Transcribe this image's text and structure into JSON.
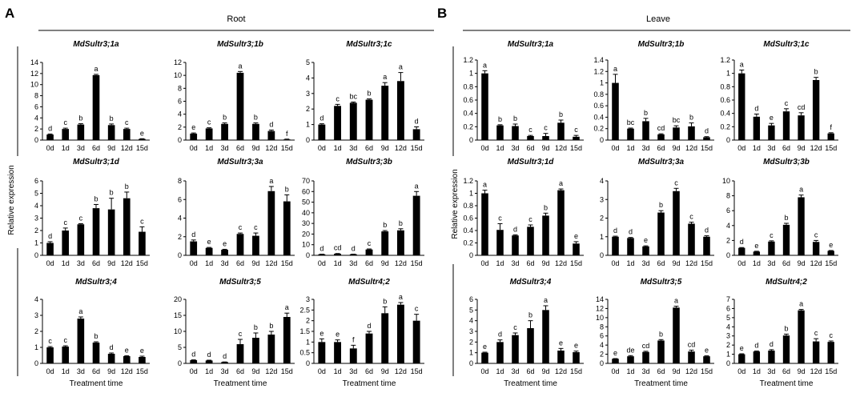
{
  "panels": [
    {
      "letter": "A",
      "tissue": "Root",
      "ylabel": "Relative expression"
    },
    {
      "letter": "B",
      "tissue": "Leave",
      "ylabel": "Relative expression"
    }
  ],
  "xlabel": "Treatment time",
  "chart_data": [
    {
      "type": "bar",
      "panel": "A",
      "tissue": "Root",
      "title": "MdSultr3;1a",
      "categories": [
        "0d",
        "1d",
        "3d",
        "6d",
        "9d",
        "12d",
        "15d"
      ],
      "values": [
        1.0,
        2.0,
        2.8,
        11.7,
        2.7,
        2.0,
        0.2
      ],
      "errors": [
        0.1,
        0.15,
        0.15,
        0.15,
        0.2,
        0.15,
        0.05
      ],
      "letters": [
        "d",
        "c",
        "b",
        "a",
        "b",
        "c",
        "e"
      ],
      "ylim": [
        0,
        14
      ],
      "yticks": [
        0,
        2,
        4,
        6,
        8,
        10,
        12,
        14
      ],
      "xlabel": "",
      "ylabel": ""
    },
    {
      "type": "bar",
      "panel": "A",
      "tissue": "Root",
      "title": "MdSultr3;1b",
      "categories": [
        "0d",
        "1d",
        "3d",
        "6d",
        "9d",
        "12d",
        "15d"
      ],
      "values": [
        1.0,
        1.8,
        2.5,
        10.4,
        2.5,
        1.4,
        0.1
      ],
      "errors": [
        0.1,
        0.1,
        0.15,
        0.2,
        0.15,
        0.15,
        0.05
      ],
      "letters": [
        "e",
        "c",
        "b",
        "a",
        "b",
        "d",
        "f"
      ],
      "ylim": [
        0,
        12
      ],
      "yticks": [
        0,
        2,
        4,
        6,
        8,
        10,
        12
      ],
      "xlabel": "",
      "ylabel": ""
    },
    {
      "type": "bar",
      "panel": "A",
      "tissue": "Root",
      "title": "MdSultr3;1c",
      "categories": [
        "0d",
        "1d",
        "3d",
        "6d",
        "9d",
        "12d",
        "15d"
      ],
      "values": [
        1.0,
        2.2,
        2.4,
        2.6,
        3.5,
        3.8,
        0.7
      ],
      "errors": [
        0.05,
        0.1,
        0.05,
        0.05,
        0.2,
        0.55,
        0.15
      ],
      "letters": [
        "d",
        "c",
        "bc",
        "b",
        "a",
        "a",
        "d"
      ],
      "ylim": [
        0,
        5
      ],
      "yticks": [
        0,
        1,
        2,
        3,
        4,
        5
      ],
      "xlabel": "",
      "ylabel": ""
    },
    {
      "type": "bar",
      "panel": "A",
      "tissue": "Root",
      "title": "MdSultr3;1d",
      "categories": [
        "0d",
        "1d",
        "3d",
        "6d",
        "9d",
        "12d",
        "15d"
      ],
      "values": [
        1.0,
        2.0,
        2.5,
        3.8,
        3.7,
        4.6,
        1.9
      ],
      "errors": [
        0.1,
        0.2,
        0.05,
        0.3,
        0.9,
        0.5,
        0.4
      ],
      "letters": [
        "d",
        "c",
        "c",
        "b",
        "b",
        "b",
        "c"
      ],
      "ylim": [
        0,
        6
      ],
      "yticks": [
        0,
        1,
        2,
        3,
        4,
        5,
        6
      ],
      "xlabel": "",
      "ylabel": ""
    },
    {
      "type": "bar",
      "panel": "A",
      "tissue": "Root",
      "title": "MdSultr3;3a",
      "categories": [
        "0d",
        "1d",
        "3d",
        "6d",
        "9d",
        "12d",
        "15d"
      ],
      "values": [
        1.5,
        0.8,
        0.6,
        2.3,
        2.1,
        6.9,
        5.8
      ],
      "errors": [
        0.15,
        0.05,
        0.05,
        0.1,
        0.3,
        0.5,
        0.7
      ],
      "letters": [
        "d",
        "e",
        "e",
        "c",
        "c",
        "a",
        "b"
      ],
      "ylim": [
        0,
        8
      ],
      "yticks": [
        0,
        2,
        4,
        6,
        8
      ],
      "xlabel": "",
      "ylabel": ""
    },
    {
      "type": "bar",
      "panel": "A",
      "tissue": "Root",
      "title": "MdSultr3;3b",
      "categories": [
        "0d",
        "1d",
        "3d",
        "6d",
        "9d",
        "12d",
        "15d"
      ],
      "values": [
        1.0,
        1.5,
        1.0,
        5.5,
        22.5,
        23.5,
        56.0
      ],
      "errors": [
        0.1,
        0.2,
        0.1,
        0.5,
        0.8,
        1.5,
        4.0
      ],
      "letters": [
        "d",
        "cd",
        "d",
        "c",
        "b",
        "b",
        "a"
      ],
      "ylim": [
        0,
        70
      ],
      "yticks": [
        0,
        10,
        20,
        30,
        40,
        50,
        60,
        70
      ],
      "xlabel": "",
      "ylabel": ""
    },
    {
      "type": "bar",
      "panel": "A",
      "tissue": "Root",
      "title": "MdSultr3;4",
      "categories": [
        "0d",
        "1d",
        "3d",
        "6d",
        "9d",
        "12d",
        "15d"
      ],
      "values": [
        1.0,
        1.05,
        2.8,
        1.3,
        0.6,
        0.45,
        0.4
      ],
      "errors": [
        0.05,
        0.05,
        0.1,
        0.05,
        0.05,
        0.03,
        0.05
      ],
      "letters": [
        "c",
        "c",
        "a",
        "b",
        "d",
        "e",
        "e"
      ],
      "ylim": [
        0,
        4
      ],
      "yticks": [
        0,
        1,
        2,
        3,
        4
      ],
      "xlabel": "Treatment time",
      "ylabel": ""
    },
    {
      "type": "bar",
      "panel": "A",
      "tissue": "Root",
      "title": "MdSultr3;5",
      "categories": [
        "0d",
        "1d",
        "3d",
        "6d",
        "9d",
        "12d",
        "15d"
      ],
      "values": [
        1.0,
        0.9,
        0.4,
        6.0,
        8.0,
        9.0,
        14.5
      ],
      "errors": [
        0.1,
        0.1,
        0.05,
        1.5,
        1.5,
        1.0,
        1.2
      ],
      "letters": [
        "d",
        "d",
        "d",
        "c",
        "b",
        "b",
        "a"
      ],
      "ylim": [
        0,
        20
      ],
      "yticks": [
        0,
        5,
        10,
        15,
        20
      ],
      "xlabel": "Treatment time",
      "ylabel": ""
    },
    {
      "type": "bar",
      "panel": "A",
      "tissue": "Root",
      "title": "MdSultr4;2",
      "categories": [
        "0d",
        "1d",
        "3d",
        "6d",
        "9d",
        "12d",
        "15d"
      ],
      "values": [
        1.0,
        1.0,
        0.7,
        1.4,
        2.35,
        2.75,
        2.0
      ],
      "errors": [
        0.15,
        0.1,
        0.15,
        0.1,
        0.3,
        0.1,
        0.3
      ],
      "letters": [
        "e",
        "e",
        "f",
        "d",
        "b",
        "a",
        "c"
      ],
      "ylim": [
        0,
        3
      ],
      "yticks": [
        0,
        0.5,
        1,
        1.5,
        2,
        2.5,
        3
      ],
      "xlabel": "Treatment time",
      "ylabel": ""
    },
    {
      "type": "bar",
      "panel": "B",
      "tissue": "Leave",
      "title": "MdSultr3;1a",
      "categories": [
        "0d",
        "1d",
        "3d",
        "6d",
        "9d",
        "12d",
        "15d"
      ],
      "values": [
        1.0,
        0.22,
        0.21,
        0.06,
        0.06,
        0.26,
        0.05
      ],
      "errors": [
        0.04,
        0.01,
        0.03,
        0.01,
        0.04,
        0.04,
        0.02
      ],
      "letters": [
        "a",
        "b",
        "b",
        "c",
        "c",
        "b",
        "c"
      ],
      "ylim": [
        0,
        1.2
      ],
      "yticks": [
        0,
        0.2,
        0.4,
        0.6,
        0.8,
        1,
        1.2
      ],
      "xlabel": "",
      "ylabel": ""
    },
    {
      "type": "bar",
      "panel": "B",
      "tissue": "Leave",
      "title": "MdSultr3;1b",
      "categories": [
        "0d",
        "1d",
        "3d",
        "6d",
        "9d",
        "12d",
        "15d"
      ],
      "values": [
        1.0,
        0.2,
        0.33,
        0.1,
        0.22,
        0.24,
        0.05
      ],
      "errors": [
        0.15,
        0.01,
        0.05,
        0.01,
        0.03,
        0.06,
        0.01
      ],
      "letters": [
        "a",
        "bc",
        "b",
        "cd",
        "bc",
        "b",
        "d"
      ],
      "ylim": [
        0,
        1.4
      ],
      "yticks": [
        0,
        0.2,
        0.4,
        0.6,
        0.8,
        1,
        1.2,
        1.4
      ],
      "xlabel": "",
      "ylabel": ""
    },
    {
      "type": "bar",
      "panel": "B",
      "tissue": "Leave",
      "title": "MdSultr3;1c",
      "categories": [
        "0d",
        "1d",
        "3d",
        "6d",
        "9d",
        "12d",
        "15d"
      ],
      "values": [
        1.0,
        0.35,
        0.22,
        0.43,
        0.37,
        0.9,
        0.1
      ],
      "errors": [
        0.05,
        0.04,
        0.03,
        0.04,
        0.04,
        0.04,
        0.01
      ],
      "letters": [
        "a",
        "d",
        "e",
        "c",
        "cd",
        "b",
        "f"
      ],
      "ylim": [
        0,
        1.2
      ],
      "yticks": [
        0,
        0.2,
        0.4,
        0.6,
        0.8,
        1,
        1.2
      ],
      "xlabel": "",
      "ylabel": ""
    },
    {
      "type": "bar",
      "panel": "B",
      "tissue": "Leave",
      "title": "MdSultr3;1d",
      "categories": [
        "0d",
        "1d",
        "3d",
        "6d",
        "9d",
        "12d",
        "15d"
      ],
      "values": [
        1.0,
        0.41,
        0.32,
        0.46,
        0.64,
        1.05,
        0.19
      ],
      "errors": [
        0.05,
        0.1,
        0.01,
        0.03,
        0.04,
        0.02,
        0.03
      ],
      "letters": [
        "a",
        "c",
        "d",
        "c",
        "b",
        "a",
        "e"
      ],
      "ylim": [
        0,
        1.2
      ],
      "yticks": [
        0,
        0.2,
        0.4,
        0.6,
        0.8,
        1,
        1.2
      ],
      "xlabel": "",
      "ylabel": ""
    },
    {
      "type": "bar",
      "panel": "B",
      "tissue": "Leave",
      "title": "MdSultr3;3a",
      "categories": [
        "0d",
        "1d",
        "3d",
        "6d",
        "9d",
        "12d",
        "15d"
      ],
      "values": [
        1.0,
        0.93,
        0.48,
        2.3,
        3.45,
        1.7,
        1.0
      ],
      "errors": [
        0.03,
        0.03,
        0.03,
        0.1,
        0.15,
        0.08,
        0.05
      ],
      "letters": [
        "d",
        "d",
        "e",
        "b",
        "c",
        "c",
        "d"
      ],
      "ylim": [
        0,
        4
      ],
      "yticks": [
        0,
        1,
        2,
        3,
        4
      ],
      "xlabel": "",
      "ylabel": ""
    },
    {
      "type": "bar",
      "panel": "B",
      "tissue": "Leave",
      "title": "MdSultr3;3b",
      "categories": [
        "0d",
        "1d",
        "3d",
        "6d",
        "9d",
        "12d",
        "15d"
      ],
      "values": [
        1.0,
        0.5,
        1.85,
        4.1,
        7.8,
        1.8,
        0.6
      ],
      "errors": [
        0.05,
        0.05,
        0.1,
        0.2,
        0.3,
        0.2,
        0.05
      ],
      "letters": [
        "d",
        "e",
        "c",
        "b",
        "a",
        "c",
        "e"
      ],
      "ylim": [
        0,
        10
      ],
      "yticks": [
        0,
        2,
        4,
        6,
        8,
        10
      ],
      "xlabel": "",
      "ylabel": ""
    },
    {
      "type": "bar",
      "panel": "B",
      "tissue": "Leave",
      "title": "MdSultr3;4",
      "categories": [
        "0d",
        "1d",
        "3d",
        "6d",
        "9d",
        "12d",
        "15d"
      ],
      "values": [
        1.0,
        2.0,
        2.65,
        3.3,
        5.0,
        1.2,
        1.05
      ],
      "errors": [
        0.05,
        0.2,
        0.2,
        0.7,
        0.4,
        0.2,
        0.1
      ],
      "letters": [
        "e",
        "d",
        "c",
        "b",
        "a",
        "e",
        "e"
      ],
      "ylim": [
        0,
        6
      ],
      "yticks": [
        0,
        1,
        2,
        3,
        4,
        5,
        6
      ],
      "xlabel": "Treatment time",
      "ylabel": ""
    },
    {
      "type": "bar",
      "panel": "B",
      "tissue": "Leave",
      "title": "MdSultr3;5",
      "categories": [
        "0d",
        "1d",
        "3d",
        "6d",
        "9d",
        "12d",
        "15d"
      ],
      "values": [
        1.0,
        1.55,
        2.5,
        5.0,
        12.2,
        2.6,
        1.55
      ],
      "errors": [
        0.05,
        0.15,
        0.15,
        0.2,
        0.3,
        0.3,
        0.1
      ],
      "letters": [
        "e",
        "de",
        "cd",
        "b",
        "a",
        "cd",
        "e"
      ],
      "ylim": [
        0,
        14
      ],
      "yticks": [
        0,
        2,
        4,
        6,
        8,
        10,
        12,
        14
      ],
      "xlabel": "Treatment time",
      "ylabel": ""
    },
    {
      "type": "bar",
      "panel": "B",
      "tissue": "Leave",
      "title": "MdSultr4;2",
      "categories": [
        "0d",
        "1d",
        "3d",
        "6d",
        "9d",
        "12d",
        "15d"
      ],
      "values": [
        1.0,
        1.3,
        1.4,
        3.05,
        5.8,
        2.4,
        2.35
      ],
      "errors": [
        0.05,
        0.05,
        0.1,
        0.15,
        0.1,
        0.3,
        0.1
      ],
      "letters": [
        "e",
        "d",
        "d",
        "b",
        "a",
        "c",
        "c"
      ],
      "ylim": [
        0,
        7
      ],
      "yticks": [
        0,
        1,
        2,
        3,
        4,
        5,
        6,
        7
      ],
      "xlabel": "Treatment time",
      "ylabel": ""
    }
  ]
}
